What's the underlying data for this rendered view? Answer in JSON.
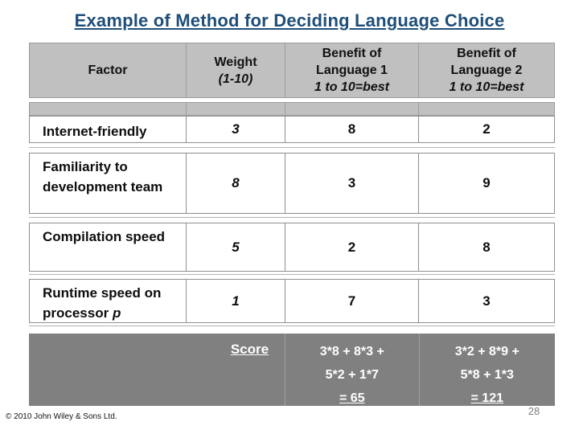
{
  "title": "Example of Method for Deciding Language Choice",
  "colors": {
    "title_text": "#1f4e79",
    "header_bg": "#c0c0c0",
    "score_row_bg": "#808080",
    "cell_border": "#8f8f8f",
    "body_text": "#0d0d0d",
    "score_text": "#ffffff"
  },
  "table": {
    "columns": [
      {
        "label": "Factor"
      },
      {
        "label": "Weight",
        "sublabel": "(1-10)"
      },
      {
        "label": "Benefit of",
        "label2": "Language 1",
        "sublabel": "1 to 10=best"
      },
      {
        "label": "Benefit of",
        "label2": "Language 2",
        "sublabel": "1 to 10=best"
      }
    ],
    "rows": [
      {
        "factor": "Internet-friendly",
        "weight": "3",
        "lang1": "8",
        "lang2": "2"
      },
      {
        "factor": "Familiarity to development team",
        "weight": "8",
        "lang1": "3",
        "lang2": "9"
      },
      {
        "factor": "Compilation speed",
        "weight": "5",
        "lang1": "2",
        "lang2": "8"
      },
      {
        "factor": "Runtime speed on processor ",
        "factor_italic": "p",
        "weight": "1",
        "lang1": "7",
        "lang2": "3"
      }
    ],
    "score": {
      "label": "Score",
      "lang1_lines": [
        "3*8 + 8*3 +",
        "5*2 + 1*7",
        "= 65"
      ],
      "lang2_lines": [
        "3*2 + 8*9 +",
        "5*8 + 1*3",
        "= 121"
      ]
    }
  },
  "footer": {
    "copyright": "© 2010 John Wiley & Sons Ltd.",
    "page_number": "28"
  }
}
